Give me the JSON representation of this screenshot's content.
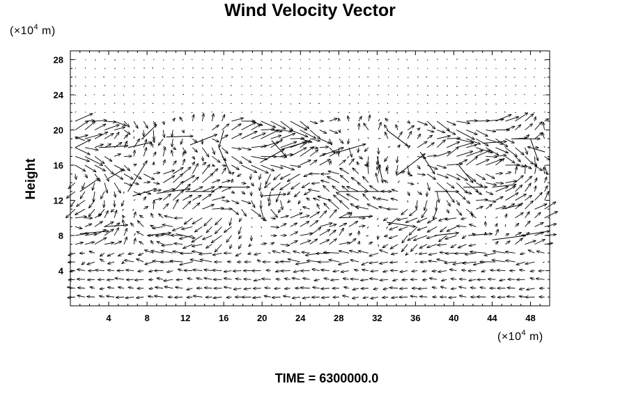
{
  "chart_data": {
    "type": "quiver",
    "title": "Wind Velocity Vector",
    "ylabel": "Height",
    "y_unit_prefix": "(×10",
    "y_unit_exp": "4",
    "y_unit_suffix": " m)",
    "x_unit_prefix": "(×10",
    "x_unit_exp": "4",
    "x_unit_suffix": " m)",
    "xlim": [
      0,
      50
    ],
    "ylim": [
      0,
      29
    ],
    "x_ticks": [
      "4",
      "8",
      "12",
      "16",
      "20",
      "24",
      "28",
      "32",
      "36",
      "40",
      "44",
      "48"
    ],
    "y_ticks": [
      "4",
      "8",
      "12",
      "16",
      "20",
      "24",
      "28"
    ],
    "grid": false,
    "caption": "TIME = 6300000.0",
    "vectors": [
      {
        "x": 0.5,
        "y": 18.0,
        "u": 1.6,
        "v": 0.9
      },
      {
        "x": 1.5,
        "y": 18.8,
        "u": -1.0,
        "v": 0.4
      },
      {
        "x": 3.0,
        "y": 18.0,
        "u": 3.0,
        "v": 0.2
      },
      {
        "x": 6.0,
        "y": 18.0,
        "u": 2.5,
        "v": 0.6
      },
      {
        "x": 7.5,
        "y": 19.0,
        "u": 1.5,
        "v": 1.6
      },
      {
        "x": 10.0,
        "y": 19.2,
        "u": 2.8,
        "v": 0.1
      },
      {
        "x": 12.5,
        "y": 18.3,
        "u": 2.8,
        "v": 1.2
      },
      {
        "x": 15.5,
        "y": 18.0,
        "u": 1.2,
        "v": -3.0
      },
      {
        "x": 16.0,
        "y": 20.0,
        "u": -0.5,
        "v": -2.0
      },
      {
        "x": 19.8,
        "y": 16.3,
        "u": 2.5,
        "v": 1.5
      },
      {
        "x": 21.0,
        "y": 18.8,
        "u": 1.5,
        "v": -1.8
      },
      {
        "x": 22.0,
        "y": 17.8,
        "u": 2.5,
        "v": 0.8
      },
      {
        "x": 26.0,
        "y": 17.0,
        "u": 2.5,
        "v": 1.0
      },
      {
        "x": 28.0,
        "y": 17.5,
        "u": 2.8,
        "v": 0.9
      },
      {
        "x": 32.0,
        "y": 17.0,
        "u": 0.6,
        "v": -3.0
      },
      {
        "x": 33.0,
        "y": 20.0,
        "u": 2.2,
        "v": -1.8
      },
      {
        "x": 34.0,
        "y": 14.8,
        "u": 3.0,
        "v": 2.5
      },
      {
        "x": 36.5,
        "y": 17.5,
        "u": 1.5,
        "v": -2.5
      },
      {
        "x": 40.5,
        "y": 16.0,
        "u": 1.5,
        "v": -2.0
      },
      {
        "x": 43.0,
        "y": 18.5,
        "u": 2.5,
        "v": 0.2
      },
      {
        "x": 46.0,
        "y": 19.0,
        "u": 3.0,
        "v": 0.0
      },
      {
        "x": 48.0,
        "y": 19.0,
        "u": 0.8,
        "v": -2.5
      },
      {
        "x": 49.5,
        "y": 17.5,
        "u": -1.8,
        "v": 0.6
      },
      {
        "x": 1.0,
        "y": 13.0,
        "u": 2.0,
        "v": 1.5
      },
      {
        "x": 4.0,
        "y": 14.5,
        "u": 1.5,
        "v": 1.0
      },
      {
        "x": 6.0,
        "y": 13.0,
        "u": 2.0,
        "v": 3.5
      },
      {
        "x": 6.5,
        "y": 12.5,
        "u": 2.5,
        "v": 0.8
      },
      {
        "x": 9.0,
        "y": 12.8,
        "u": 3.5,
        "v": 0.5
      },
      {
        "x": 12.0,
        "y": 13.0,
        "u": 3.0,
        "v": 0.0
      },
      {
        "x": 15.5,
        "y": 13.5,
        "u": 3.2,
        "v": 0.0
      },
      {
        "x": 20.0,
        "y": 12.5,
        "u": 2.5,
        "v": 0.2
      },
      {
        "x": 28.0,
        "y": 13.0,
        "u": 3.0,
        "v": 0.0
      },
      {
        "x": 31.0,
        "y": 13.0,
        "u": 2.5,
        "v": 0.0
      },
      {
        "x": 38.0,
        "y": 13.0,
        "u": 2.5,
        "v": 0.0
      },
      {
        "x": 41.0,
        "y": 13.5,
        "u": 2.5,
        "v": 0.0
      },
      {
        "x": 44.0,
        "y": 13.5,
        "u": 2.5,
        "v": 0.3
      },
      {
        "x": 45.0,
        "y": 11.0,
        "u": 2.0,
        "v": 0.5
      },
      {
        "x": 1.0,
        "y": 8.2,
        "u": 3.0,
        "v": 0.3
      },
      {
        "x": 3.5,
        "y": 9.0,
        "u": 2.5,
        "v": 0.2
      },
      {
        "x": 8.0,
        "y": 8.0,
        "u": 2.5,
        "v": 0.3
      },
      {
        "x": 11.0,
        "y": 8.2,
        "u": 2.0,
        "v": -0.5
      },
      {
        "x": 28.0,
        "y": 10.0,
        "u": 3.5,
        "v": 0.2
      },
      {
        "x": 33.0,
        "y": 9.5,
        "u": 3.0,
        "v": -0.5
      },
      {
        "x": 38.0,
        "y": 8.0,
        "u": 2.5,
        "v": 0.3
      },
      {
        "x": 41.5,
        "y": 8.0,
        "u": 2.5,
        "v": 0.2
      },
      {
        "x": 44.0,
        "y": 7.5,
        "u": 3.5,
        "v": 0.5
      },
      {
        "x": 47.0,
        "y": 8.0,
        "u": 3.0,
        "v": 0.5
      }
    ]
  }
}
